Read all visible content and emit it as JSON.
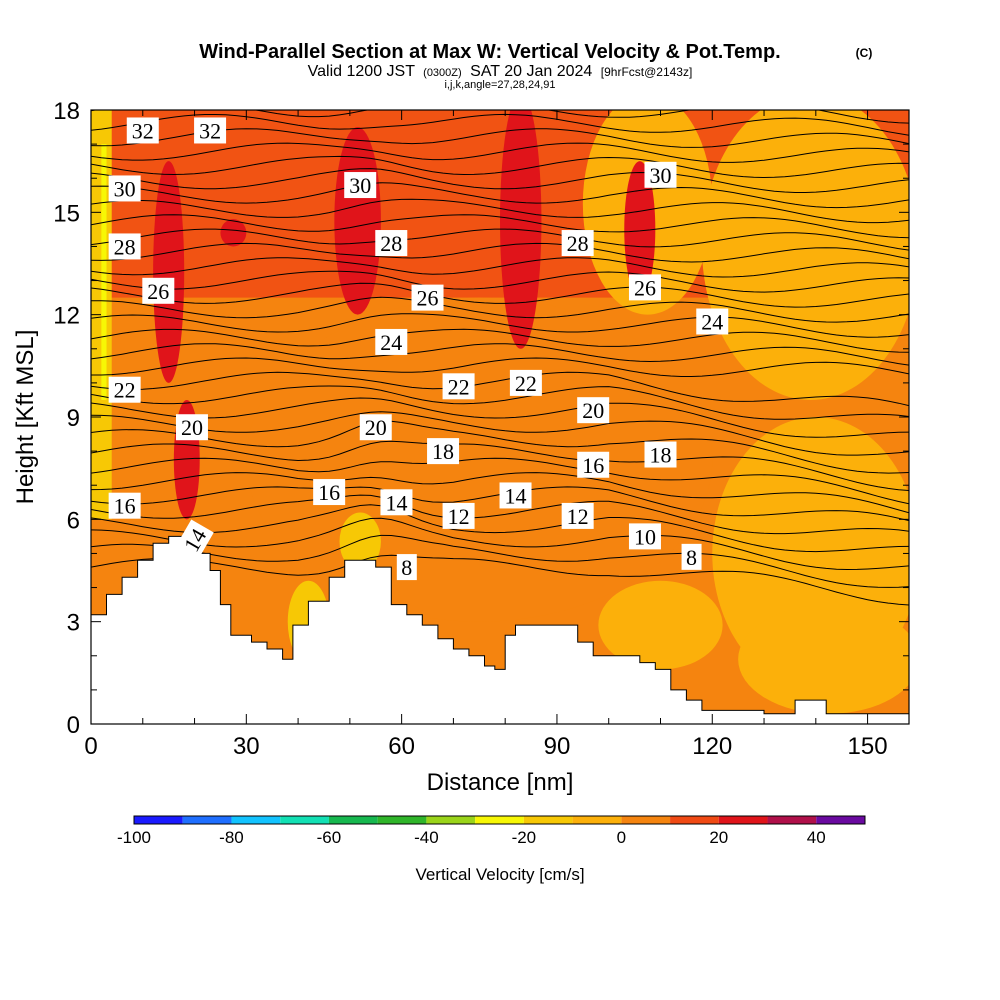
{
  "chart_data": {
    "type": "heatmap",
    "title": "Wind-Parallel Section at Max W: Vertical Velocity & Pot.Temp.",
    "title_mark": "(C)",
    "subtitle_valid": "Valid 1200 JST",
    "subtitle_utc": "(0300Z)",
    "subtitle_date": "SAT 20 Jan 2024",
    "subtitle_fcst": "[9hrFcst@2143z]",
    "subtitle_indices": "i,j,k,angle=27,28,24,91",
    "xlabel": "Distance [nm]",
    "ylabel": "Height [Kft MSL]",
    "xlim": [
      0,
      158
    ],
    "ylim": [
      0,
      18
    ],
    "x_ticks": [
      0,
      30,
      60,
      90,
      120,
      150
    ],
    "x_tick_labels": [
      "0",
      "30",
      "60",
      "90",
      "120",
      "150"
    ],
    "y_ticks": [
      0,
      3,
      6,
      9,
      12,
      15,
      18
    ],
    "y_tick_labels": [
      "0",
      "3",
      "6",
      "9",
      "12",
      "15",
      "18"
    ],
    "colorbar": {
      "label": "Vertical Velocity [cm/s]",
      "min": -100,
      "max": 50,
      "step": 10,
      "tick_values": [
        -100,
        -80,
        -60,
        -40,
        -20,
        0,
        20,
        40
      ],
      "tick_labels": [
        "-100",
        "-80",
        "-60",
        "-40",
        "-20",
        "0",
        "20",
        "40"
      ],
      "colors": [
        "#1a1aff",
        "#1f6fff",
        "#12c3ff",
        "#12e0b4",
        "#17b84f",
        "#2fb52a",
        "#9ad41a",
        "#f7f705",
        "#f7c805",
        "#fcb00a",
        "#f5840f",
        "#f04a14",
        "#e0141a",
        "#b0104a",
        "#6a0aa0"
      ]
    },
    "theta_contour_labels": [
      {
        "text": "32",
        "x": 10,
        "y": 17.4
      },
      {
        "text": "32",
        "x": 23,
        "y": 17.4
      },
      {
        "text": "30",
        "x": 6.5,
        "y": 15.7
      },
      {
        "text": "28",
        "x": 6.5,
        "y": 14.0
      },
      {
        "text": "26",
        "x": 13,
        "y": 12.7
      },
      {
        "text": "22",
        "x": 6.5,
        "y": 9.8
      },
      {
        "text": "20",
        "x": 19.5,
        "y": 8.7
      },
      {
        "text": "16",
        "x": 6.5,
        "y": 6.4
      },
      {
        "text": "14",
        "x": 20,
        "y": 5.4,
        "rotate": -60
      },
      {
        "text": "30",
        "x": 52,
        "y": 15.8
      },
      {
        "text": "28",
        "x": 58,
        "y": 14.1
      },
      {
        "text": "26",
        "x": 65,
        "y": 12.5
      },
      {
        "text": "24",
        "x": 58,
        "y": 11.2
      },
      {
        "text": "22",
        "x": 71,
        "y": 9.9
      },
      {
        "text": "22",
        "x": 84,
        "y": 10.0
      },
      {
        "text": "20",
        "x": 55,
        "y": 8.7
      },
      {
        "text": "18",
        "x": 68,
        "y": 8.0
      },
      {
        "text": "16",
        "x": 46,
        "y": 6.8
      },
      {
        "text": "14",
        "x": 59,
        "y": 6.5
      },
      {
        "text": "12",
        "x": 71,
        "y": 6.1
      },
      {
        "text": "14",
        "x": 82,
        "y": 6.7
      },
      {
        "text": "12",
        "x": 94,
        "y": 6.1
      },
      {
        "text": "8",
        "x": 61,
        "y": 4.6
      },
      {
        "text": "28",
        "x": 94,
        "y": 14.1
      },
      {
        "text": "30",
        "x": 110,
        "y": 16.1
      },
      {
        "text": "26",
        "x": 107,
        "y": 12.8
      },
      {
        "text": "24",
        "x": 120,
        "y": 11.8
      },
      {
        "text": "20",
        "x": 97,
        "y": 9.2
      },
      {
        "text": "16",
        "x": 97,
        "y": 7.6
      },
      {
        "text": "18",
        "x": 110,
        "y": 7.9
      },
      {
        "text": "10",
        "x": 107,
        "y": 5.5
      },
      {
        "text": "8",
        "x": 116,
        "y": 4.9
      }
    ],
    "terrain": [
      [
        0,
        3.2
      ],
      [
        3,
        3.2
      ],
      [
        3,
        3.8
      ],
      [
        6,
        3.8
      ],
      [
        6,
        4.3
      ],
      [
        9,
        4.3
      ],
      [
        9,
        4.8
      ],
      [
        12,
        4.8
      ],
      [
        12,
        5.3
      ],
      [
        15,
        5.3
      ],
      [
        15,
        5.5
      ],
      [
        21,
        5.5
      ],
      [
        21,
        5.0
      ],
      [
        23,
        5.0
      ],
      [
        23,
        4.5
      ],
      [
        25,
        4.5
      ],
      [
        25,
        3.5
      ],
      [
        27,
        3.5
      ],
      [
        27,
        2.6
      ],
      [
        31,
        2.6
      ],
      [
        31,
        2.4
      ],
      [
        34,
        2.4
      ],
      [
        34,
        2.2
      ],
      [
        37,
        2.2
      ],
      [
        37,
        1.9
      ],
      [
        39,
        1.9
      ],
      [
        39,
        2.9
      ],
      [
        42,
        2.9
      ],
      [
        42,
        3.6
      ],
      [
        46,
        3.6
      ],
      [
        46,
        4.3
      ],
      [
        49,
        4.3
      ],
      [
        49,
        4.8
      ],
      [
        55,
        4.8
      ],
      [
        55,
        4.6
      ],
      [
        58,
        4.6
      ],
      [
        58,
        3.5
      ],
      [
        61,
        3.5
      ],
      [
        61,
        3.2
      ],
      [
        64,
        3.2
      ],
      [
        64,
        2.9
      ],
      [
        67,
        2.9
      ],
      [
        67,
        2.5
      ],
      [
        70,
        2.5
      ],
      [
        70,
        2.2
      ],
      [
        73,
        2.2
      ],
      [
        73,
        2.0
      ],
      [
        76,
        2.0
      ],
      [
        76,
        1.7
      ],
      [
        78,
        1.7
      ],
      [
        78,
        1.6
      ],
      [
        80,
        1.6
      ],
      [
        80,
        2.6
      ],
      [
        82,
        2.6
      ],
      [
        82,
        2.9
      ],
      [
        94,
        2.9
      ],
      [
        94,
        2.4
      ],
      [
        97,
        2.4
      ],
      [
        97,
        2.0
      ],
      [
        106,
        2.0
      ],
      [
        106,
        1.8
      ],
      [
        109,
        1.8
      ],
      [
        109,
        1.6
      ],
      [
        112,
        1.6
      ],
      [
        112,
        1.0
      ],
      [
        115,
        1.0
      ],
      [
        115,
        0.7
      ],
      [
        118,
        0.7
      ],
      [
        118,
        0.4
      ],
      [
        130,
        0.4
      ],
      [
        130,
        0.3
      ],
      [
        136,
        0.3
      ],
      [
        136,
        0.7
      ],
      [
        142,
        0.7
      ],
      [
        142,
        0.3
      ],
      [
        158,
        0.3
      ],
      [
        158,
        0
      ],
      [
        0,
        0
      ]
    ]
  }
}
